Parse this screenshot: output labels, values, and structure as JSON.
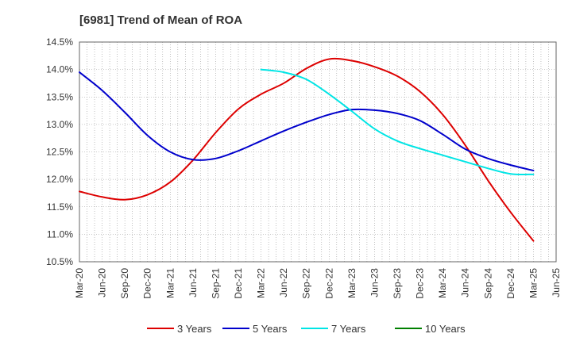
{
  "chart_data": {
    "type": "line",
    "title": "[6981]  Trend of Mean of ROA",
    "xlabel": "",
    "ylabel": "",
    "ylim": [
      10.5,
      14.5
    ],
    "yticks": [
      "10.5%",
      "11.0%",
      "11.5%",
      "12.0%",
      "12.5%",
      "13.0%",
      "13.5%",
      "14.0%",
      "14.5%"
    ],
    "ytick_values": [
      10.5,
      11.0,
      11.5,
      12.0,
      12.5,
      13.0,
      13.5,
      14.0,
      14.5
    ],
    "categories": [
      "Mar-20",
      "Jun-20",
      "Sep-20",
      "Dec-20",
      "Mar-21",
      "Jun-21",
      "Sep-21",
      "Dec-21",
      "Mar-22",
      "Jun-22",
      "Sep-22",
      "Dec-22",
      "Mar-23",
      "Jun-23",
      "Sep-23",
      "Dec-23",
      "Mar-24",
      "Jun-24",
      "Sep-24",
      "Dec-24",
      "Mar-25",
      "Jun-25"
    ],
    "grid": true,
    "legend_position": "bottom",
    "series": [
      {
        "name": "3 Years",
        "color": "#dd0000",
        "values": [
          11.78,
          11.68,
          11.63,
          11.72,
          11.95,
          12.35,
          12.85,
          13.28,
          13.55,
          13.75,
          14.02,
          14.19,
          14.16,
          14.05,
          13.88,
          13.6,
          13.18,
          12.62,
          11.98,
          11.4,
          10.88,
          null
        ]
      },
      {
        "name": "5 Years",
        "color": "#0000cc",
        "values": [
          13.95,
          13.62,
          13.22,
          12.8,
          12.5,
          12.36,
          12.38,
          12.52,
          12.7,
          12.88,
          13.04,
          13.18,
          13.27,
          13.26,
          13.2,
          13.07,
          12.82,
          12.55,
          12.38,
          12.26,
          12.16,
          null
        ]
      },
      {
        "name": "7 Years",
        "color": "#00e5e5",
        "values": [
          null,
          null,
          null,
          null,
          null,
          null,
          null,
          null,
          14.0,
          13.95,
          13.82,
          13.55,
          13.24,
          12.92,
          12.7,
          12.56,
          12.44,
          12.32,
          12.2,
          12.1,
          12.09,
          null
        ]
      },
      {
        "name": "10 Years",
        "color": "#008000",
        "values": [
          null,
          null,
          null,
          null,
          null,
          null,
          null,
          null,
          null,
          null,
          null,
          null,
          null,
          null,
          null,
          null,
          null,
          null,
          null,
          null,
          null,
          null
        ]
      }
    ]
  }
}
